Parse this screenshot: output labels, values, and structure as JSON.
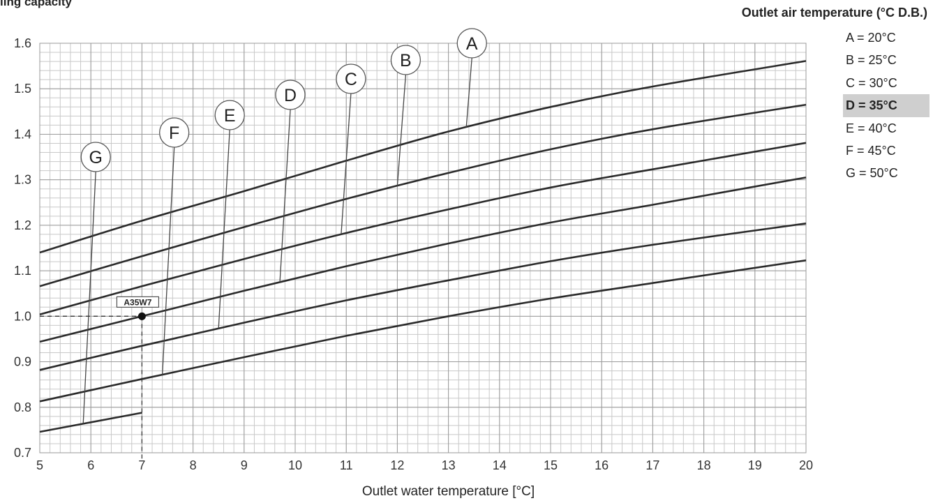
{
  "chart_data": {
    "type": "line",
    "title": "ling capacity",
    "xlabel": "Outlet water temperature [°C]",
    "ylabel": "",
    "xlim": [
      5,
      20
    ],
    "ylim": [
      0.7,
      1.6
    ],
    "grid": true,
    "x_ticks": [
      "5",
      "6",
      "7",
      "8",
      "9",
      "10",
      "11",
      "12",
      "13",
      "14",
      "15",
      "16",
      "17",
      "18",
      "19",
      "20"
    ],
    "y_ticks": [
      "0.7",
      "0.8",
      "0.9",
      "1.0",
      "1.1",
      "1.2",
      "1.3",
      "1.4",
      "1.5",
      "1.6"
    ],
    "legend_title": "Outlet air temperature (°C D.B.)",
    "legend_placement": "right",
    "series": [
      {
        "name": "A",
        "legend_label": "A = 20°C",
        "x": [
          5,
          7,
          9,
          11,
          13,
          15,
          17,
          20
        ],
        "y": [
          1.14,
          1.21,
          1.275,
          1.342,
          1.406,
          1.46,
          1.505,
          1.561
        ]
      },
      {
        "name": "B",
        "legend_label": "B = 25°C",
        "x": [
          5,
          7,
          9,
          11,
          13,
          15,
          17,
          20
        ],
        "y": [
          1.066,
          1.132,
          1.196,
          1.258,
          1.315,
          1.367,
          1.411,
          1.465
        ]
      },
      {
        "name": "C",
        "legend_label": "C = 30°C",
        "x": [
          5,
          7,
          9,
          11,
          13,
          15,
          17,
          20
        ],
        "y": [
          1.004,
          1.066,
          1.126,
          1.183,
          1.235,
          1.283,
          1.323,
          1.381
        ]
      },
      {
        "name": "D",
        "legend_label": "D = 35°C",
        "x": [
          5,
          7,
          9,
          11,
          13,
          15,
          17,
          20
        ],
        "y": [
          0.944,
          1.0,
          1.056,
          1.11,
          1.16,
          1.206,
          1.245,
          1.305
        ]
      },
      {
        "name": "E",
        "legend_label": "E = 40°C",
        "x": [
          5,
          7,
          9,
          11,
          13,
          15,
          17,
          20
        ],
        "y": [
          0.882,
          0.935,
          0.986,
          1.035,
          1.079,
          1.121,
          1.157,
          1.204
        ]
      },
      {
        "name": "F",
        "legend_label": "F = 45°C",
        "x": [
          5,
          7,
          9,
          11,
          13,
          15,
          17,
          20
        ],
        "y": [
          0.813,
          0.862,
          0.91,
          0.957,
          1.0,
          1.039,
          1.073,
          1.123
        ]
      },
      {
        "name": "G",
        "legend_label": "G = 50°C",
        "x": [
          5,
          6,
          7
        ],
        "y": [
          0.746,
          0.767,
          0.788
        ]
      }
    ],
    "highlighted_series": "D",
    "annotation_point": {
      "label": "A35W7",
      "x": 7,
      "y": 1.0
    },
    "callouts": [
      {
        "series": "A",
        "at_x": 13.35
      },
      {
        "series": "B",
        "at_x": 12.0
      },
      {
        "series": "C",
        "at_x": 10.9
      },
      {
        "series": "D",
        "at_x": 9.7
      },
      {
        "series": "E",
        "at_x": 8.5
      },
      {
        "series": "F",
        "at_x": 7.4
      },
      {
        "series": "G",
        "at_x": 5.85
      }
    ]
  }
}
